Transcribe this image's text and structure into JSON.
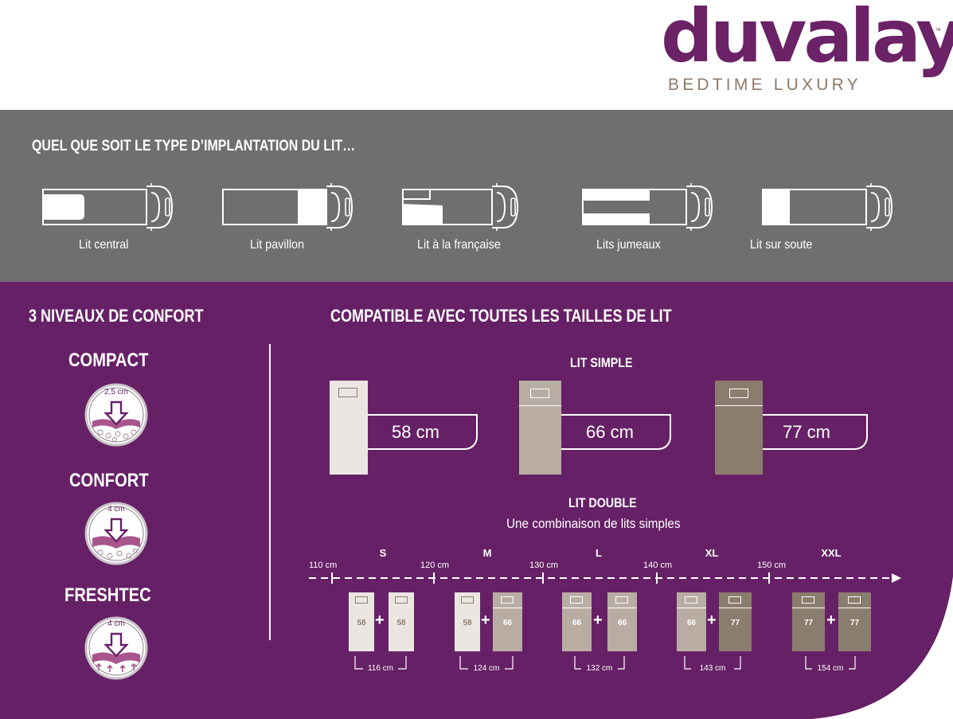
{
  "logo": {
    "word": "duvalay",
    "tm": "™",
    "tagline": "BEDTIME LUXURY"
  },
  "layouts": {
    "title": "QUEL QUE SOIT LE TYPE D’IMPLANTATION DU LIT…",
    "items": [
      {
        "label": "Lit central"
      },
      {
        "label": "Lit pavillon"
      },
      {
        "label": "Lit à la française"
      },
      {
        "label": "Lits jumeaux"
      },
      {
        "label": "Lit sur soute"
      }
    ]
  },
  "comfort": {
    "title": "3 NIVEAUX DE CONFORT",
    "levels": [
      {
        "name": "COMPACT",
        "thickness": "2,5 cm"
      },
      {
        "name": "CONFORT",
        "thickness": "4 cm"
      },
      {
        "name": "FRESHTEC",
        "thickness": "4 cm"
      }
    ]
  },
  "sizes": {
    "title": "COMPATIBLE AVEC TOUTES LES TAILLES DE LIT",
    "single_title": "LIT SIMPLE",
    "singles": [
      {
        "width": "58 cm",
        "color": "#ece6e2"
      },
      {
        "width": "66 cm",
        "color": "#b9ada3"
      },
      {
        "width": "77 cm",
        "color": "#8b7d6e"
      }
    ],
    "double_title": "LIT DOUBLE",
    "double_subtitle": "Une combinaison de lits simples",
    "scale_ticks": [
      "110 cm",
      "120 cm",
      "130 cm",
      "140 cm",
      "150 cm"
    ],
    "tiers": [
      "S",
      "M",
      "L",
      "XL",
      "XXL"
    ],
    "combos": [
      {
        "a": "58",
        "b": "58",
        "total": "116 cm"
      },
      {
        "a": "58",
        "b": "66",
        "total": "124 cm"
      },
      {
        "a": "66",
        "b": "66",
        "total": "132 cm"
      },
      {
        "a": "66",
        "b": "77",
        "total": "143 cm"
      },
      {
        "a": "77",
        "b": "77",
        "total": "154 cm"
      }
    ],
    "plus_sign": "+"
  },
  "colors": {
    "purple": "#662166",
    "grey": "#6f6f6f",
    "logo": "#6b2266",
    "tagline": "#8d7a68"
  }
}
